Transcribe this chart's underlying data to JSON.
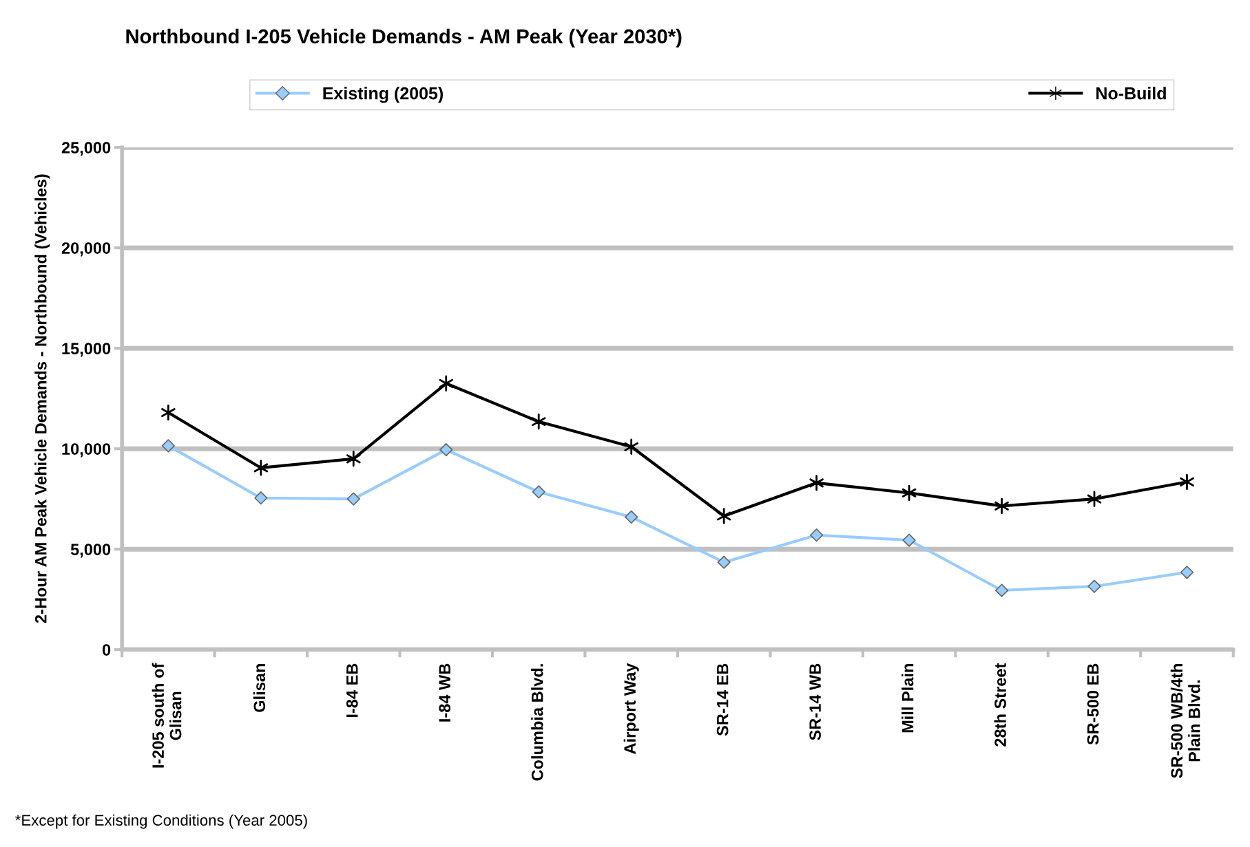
{
  "chart_data": {
    "type": "line",
    "title": "Northbound I-205 Vehicle Demands - AM Peak (Year 2030*)",
    "ylabel": "2-Hour AM Peak Vehicle Demands - Northbound (Vehicles)",
    "categories": [
      "I-205 south of\nGlisan",
      "Glisan",
      "I-84 EB",
      "I-84 WB",
      "Columbia Blvd.",
      "Airport Way",
      "SR-14 EB",
      "SR-14 WB",
      "Mill Plain",
      "28th Street",
      "SR-500 EB",
      "SR-500 WB/4th\nPlain Blvd."
    ],
    "series": [
      {
        "name": "Existing (2005)",
        "color": "#99ccff",
        "marker": "diamond",
        "values": [
          10150,
          7550,
          7500,
          9950,
          7850,
          6600,
          4350,
          5700,
          5450,
          2950,
          3150,
          3850
        ]
      },
      {
        "name": "No-Build",
        "color": "#000000",
        "marker": "cross",
        "values": [
          11800,
          9050,
          9500,
          13250,
          11350,
          10100,
          6650,
          8300,
          7800,
          7150,
          7500,
          8350
        ]
      }
    ],
    "ylim": [
      0,
      25000
    ],
    "yticks": [
      {
        "value": 0,
        "label": "0"
      },
      {
        "value": 5000,
        "label": "5,000"
      },
      {
        "value": 10000,
        "label": "10,000"
      },
      {
        "value": 15000,
        "label": "15,000"
      },
      {
        "value": 20000,
        "label": "20,000"
      },
      {
        "value": 25000,
        "label": "25,000"
      }
    ],
    "grid": "y",
    "legend": "top",
    "line_style": "solid",
    "annotations": [
      "*Except for Existing Conditions (Year 2005)"
    ]
  }
}
